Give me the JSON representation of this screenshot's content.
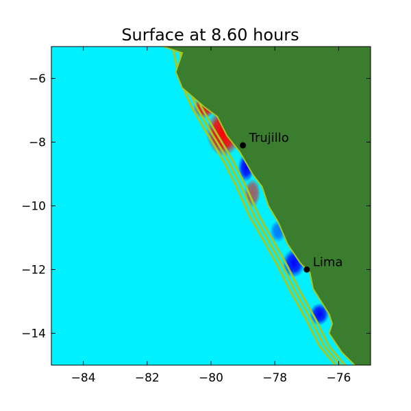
{
  "figure": {
    "title": "Surface at 8.60 hours"
  },
  "map": {
    "x_range": [
      -85,
      -75
    ],
    "y_range": [
      -15,
      -5
    ],
    "x_ticks": [
      -84,
      -82,
      -80,
      -78,
      -76
    ],
    "y_ticks": [
      -6,
      -8,
      -10,
      -12,
      -14
    ],
    "ocean_color": "#00f0ff",
    "land_color": "#3a7d2e",
    "contour_color": "#a8c820",
    "crest_color": "#ff0000",
    "trough_color": "#0000ff"
  },
  "cities": [
    {
      "name": "Trujillo",
      "lon": -79.0,
      "lat": -8.1
    },
    {
      "name": "Lima",
      "lon": -77.0,
      "lat": -12.0
    }
  ],
  "coastline": [
    [
      -81.5,
      -5.0
    ],
    [
      -80.9,
      -5.2
    ],
    [
      -81.1,
      -5.8
    ],
    [
      -80.9,
      -6.3
    ],
    [
      -80.2,
      -6.9
    ],
    [
      -79.8,
      -7.2
    ],
    [
      -79.5,
      -7.8
    ],
    [
      -79.1,
      -8.3
    ],
    [
      -78.7,
      -9.0
    ],
    [
      -78.4,
      -9.4
    ],
    [
      -78.2,
      -10.0
    ],
    [
      -77.9,
      -10.5
    ],
    [
      -77.6,
      -11.2
    ],
    [
      -77.2,
      -11.8
    ],
    [
      -76.9,
      -12.1
    ],
    [
      -76.8,
      -12.6
    ],
    [
      -76.3,
      -13.4
    ],
    [
      -76.2,
      -13.7
    ],
    [
      -76.3,
      -14.0
    ],
    [
      -75.9,
      -14.6
    ],
    [
      -75.5,
      -15.0
    ]
  ],
  "contours": [
    [
      [
        -81.2,
        -5.0
      ],
      [
        -81.0,
        -6.0
      ],
      [
        -80.6,
        -6.9
      ],
      [
        -80.2,
        -7.6
      ],
      [
        -79.6,
        -8.6
      ],
      [
        -79.2,
        -9.4
      ],
      [
        -78.8,
        -10.3
      ],
      [
        -78.4,
        -11.0
      ],
      [
        -77.9,
        -11.9
      ],
      [
        -77.5,
        -12.7
      ],
      [
        -77.0,
        -13.6
      ],
      [
        -76.6,
        -14.4
      ],
      [
        -76.1,
        -15.0
      ]
    ],
    [
      [
        -81.0,
        -5.0
      ],
      [
        -80.85,
        -6.0
      ],
      [
        -80.45,
        -6.9
      ],
      [
        -80.05,
        -7.6
      ],
      [
        -79.45,
        -8.6
      ],
      [
        -79.05,
        -9.4
      ],
      [
        -78.65,
        -10.3
      ],
      [
        -78.25,
        -11.0
      ],
      [
        -77.75,
        -11.9
      ],
      [
        -77.35,
        -12.7
      ],
      [
        -76.85,
        -13.6
      ],
      [
        -76.45,
        -14.4
      ],
      [
        -75.95,
        -15.0
      ]
    ],
    [
      [
        -80.85,
        -5.0
      ],
      [
        -80.7,
        -6.0
      ],
      [
        -80.3,
        -6.9
      ],
      [
        -79.9,
        -7.6
      ],
      [
        -79.3,
        -8.6
      ],
      [
        -78.9,
        -9.4
      ],
      [
        -78.5,
        -10.3
      ],
      [
        -78.1,
        -11.0
      ],
      [
        -77.6,
        -11.9
      ],
      [
        -77.2,
        -12.7
      ],
      [
        -76.7,
        -13.6
      ],
      [
        -76.3,
        -14.4
      ],
      [
        -75.8,
        -15.0
      ]
    ]
  ],
  "anomalies": [
    {
      "kind": "crest",
      "lon": -79.6,
      "lat": -7.7,
      "rx": 0.55,
      "ry": 0.75,
      "strength": 1.0
    },
    {
      "kind": "crest",
      "lon": -80.2,
      "lat": -6.9,
      "rx": 0.35,
      "ry": 0.35,
      "strength": 0.9
    },
    {
      "kind": "crest",
      "lon": -78.7,
      "lat": -9.6,
      "rx": 0.25,
      "ry": 0.45,
      "strength": 0.6
    },
    {
      "kind": "trough",
      "lon": -78.9,
      "lat": -8.8,
      "rx": 0.25,
      "ry": 0.45,
      "strength": 1.0
    },
    {
      "kind": "trough",
      "lon": -77.4,
      "lat": -11.8,
      "rx": 0.35,
      "ry": 0.45,
      "strength": 1.0
    },
    {
      "kind": "trough",
      "lon": -76.6,
      "lat": -13.4,
      "rx": 0.3,
      "ry": 0.35,
      "strength": 1.0
    },
    {
      "kind": "trough",
      "lon": -77.9,
      "lat": -10.8,
      "rx": 0.25,
      "ry": 0.35,
      "strength": 0.5
    }
  ]
}
